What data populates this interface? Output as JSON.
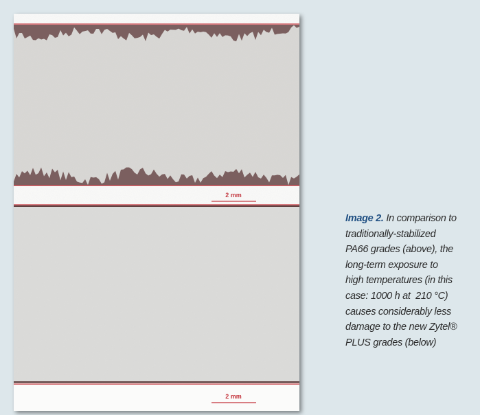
{
  "figure": {
    "scale_labels": [
      "2 mm",
      "2 mm"
    ]
  },
  "caption": {
    "label": "Image 2.",
    "lines": [
      "In comparison to",
      "traditionally-stabilized",
      "PA66 grades (above), the",
      "long-term exposure to",
      "high temperatures (in this",
      "case: 1000 h at  210 °C)",
      "causes considerably less",
      "damage to the new Zytel®",
      "PLUS grades (below)"
    ]
  }
}
